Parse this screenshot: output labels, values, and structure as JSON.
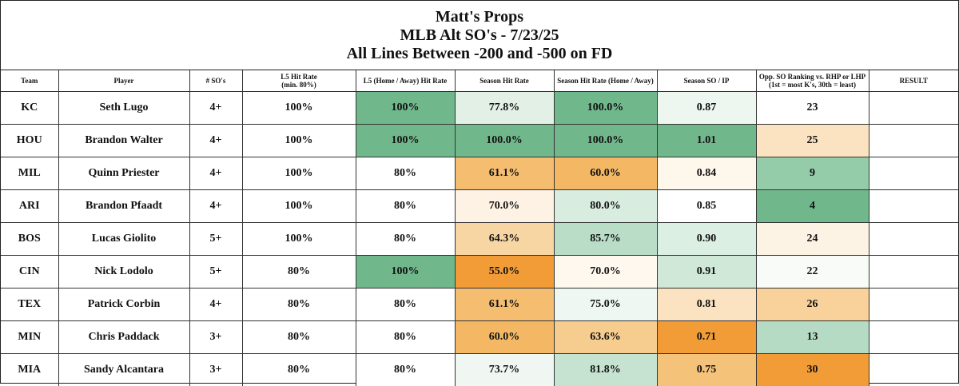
{
  "title": {
    "line1": "Matt's Props",
    "line2": "MLB Alt SO's - 7/23/25",
    "line3": "All Lines Between -200 and -500 on FD"
  },
  "headers": [
    "Team",
    "Player",
    "# SO's",
    "L5 Hit Rate\n(min. 80%)",
    "L5 (Home / Away) Hit Rate",
    "Season Hit Rate",
    "Season Hit Rate (Home / Away)",
    "Season SO / IP",
    "Opp. SO Ranking vs. RHP or LHP\n(1st = most K's, 30th = least)",
    "RESULT"
  ],
  "rows": [
    {
      "team": "KC",
      "player": "Seth Lugo",
      "so": "4+",
      "l5": "100%",
      "l5ha": "100%",
      "season": "77.8%",
      "seasonha": "100.0%",
      "soip": "0.87",
      "opp": "23",
      "result": ""
    },
    {
      "team": "HOU",
      "player": "Brandon Walter",
      "so": "4+",
      "l5": "100%",
      "l5ha": "100%",
      "season": "100.0%",
      "seasonha": "100.0%",
      "soip": "1.01",
      "opp": "25",
      "result": ""
    },
    {
      "team": "MIL",
      "player": "Quinn Priester",
      "so": "4+",
      "l5": "100%",
      "l5ha": "80%",
      "season": "61.1%",
      "seasonha": "60.0%",
      "soip": "0.84",
      "opp": "9",
      "result": ""
    },
    {
      "team": "ARI",
      "player": "Brandon Pfaadt",
      "so": "4+",
      "l5": "100%",
      "l5ha": "80%",
      "season": "70.0%",
      "seasonha": "80.0%",
      "soip": "0.85",
      "opp": "4",
      "result": ""
    },
    {
      "team": "BOS",
      "player": "Lucas Giolito",
      "so": "5+",
      "l5": "100%",
      "l5ha": "80%",
      "season": "64.3%",
      "seasonha": "85.7%",
      "soip": "0.90",
      "opp": "24",
      "result": ""
    },
    {
      "team": "CIN",
      "player": "Nick Lodolo",
      "so": "5+",
      "l5": "80%",
      "l5ha": "100%",
      "season": "55.0%",
      "seasonha": "70.0%",
      "soip": "0.91",
      "opp": "22",
      "result": ""
    },
    {
      "team": "TEX",
      "player": "Patrick Corbin",
      "so": "4+",
      "l5": "80%",
      "l5ha": "80%",
      "season": "61.1%",
      "seasonha": "75.0%",
      "soip": "0.81",
      "opp": "26",
      "result": ""
    },
    {
      "team": "MIN",
      "player": "Chris Paddack",
      "so": "3+",
      "l5": "80%",
      "l5ha": "80%",
      "season": "60.0%",
      "seasonha": "63.6%",
      "soip": "0.71",
      "opp": "13",
      "result": ""
    },
    {
      "team": "MIA",
      "player": "Sandy Alcantara",
      "so": "3+",
      "l5": "80%",
      "l5ha": "80%",
      "season": "73.7%",
      "seasonha": "81.8%",
      "soip": "0.75",
      "opp": "30",
      "result": ""
    }
  ],
  "cell_colors": [
    {
      "l5ha": "#71b78c",
      "season": "#e2f0e6",
      "seasonha": "#71b78c",
      "soip": "#eef6f0",
      "opp": "#ffffff"
    },
    {
      "l5ha": "#71b78c",
      "season": "#71b78c",
      "seasonha": "#71b78c",
      "soip": "#71b78c",
      "opp": "#fbe3c2"
    },
    {
      "l5ha": "#ffffff",
      "season": "#f4bd6f",
      "seasonha": "#f4b865",
      "soip": "#fef7ec",
      "opp": "#94ccaa"
    },
    {
      "l5ha": "#ffffff",
      "season": "#fdf2e3",
      "seasonha": "#d8ede0",
      "soip": "#ffffff",
      "opp": "#71b78c"
    },
    {
      "l5ha": "#ffffff",
      "season": "#f8d6a4",
      "seasonha": "#b9ddc7",
      "soip": "#dcefe3",
      "opp": "#fdf3e5"
    },
    {
      "l5ha": "#71b78c",
      "season": "#f29c37",
      "seasonha": "#fff8ef",
      "soip": "#cfe8d8",
      "opp": "#f8fbf8"
    },
    {
      "l5ha": "#ffffff",
      "season": "#f4bd6f",
      "seasonha": "#eef7f1",
      "soip": "#fbe3c1",
      "opp": "#f8d19b"
    },
    {
      "l5ha": "#ffffff",
      "season": "#f4b865",
      "seasonha": "#f7cc8f",
      "soip": "#f29c37",
      "opp": "#b6dbc4"
    },
    {
      "l5ha": "#ffffff",
      "season": "#f0f7f2",
      "seasonha": "#c6e3d1",
      "soip": "#f5c27a",
      "opp": "#f29c37"
    }
  ]
}
